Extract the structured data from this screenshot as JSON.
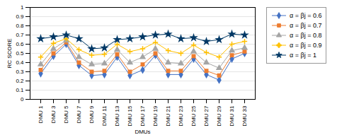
{
  "chart_data": {
    "type": "line",
    "xlabel": "DMUs",
    "ylabel": "RC SCORE",
    "categories": [
      "DMU 1",
      "DMU 3",
      "DMU 5",
      "DMU 7",
      "DMU 9",
      "DMU 11",
      "DMU 13",
      "DMU 15",
      "DMU 17",
      "DMU 19",
      "DMU 21",
      "DMU 23",
      "DMU 25",
      "DMU 27",
      "DMU 29",
      "DMU 31",
      "DMU 33"
    ],
    "series": [
      {
        "name": "α = βj = 0.6",
        "color": "#4472C4",
        "marker": "diamond",
        "values": [
          0.28,
          0.47,
          0.6,
          0.37,
          0.26,
          0.27,
          0.46,
          0.26,
          0.32,
          0.48,
          0.27,
          0.27,
          0.44,
          0.27,
          0.21,
          0.44,
          0.5
        ]
      },
      {
        "name": "α = βj = 0.7",
        "color": "#ED7D31",
        "marker": "square",
        "values": [
          0.32,
          0.5,
          0.62,
          0.4,
          0.3,
          0.31,
          0.49,
          0.3,
          0.38,
          0.5,
          0.31,
          0.31,
          0.47,
          0.31,
          0.26,
          0.48,
          0.52
        ]
      },
      {
        "name": "α = βj = 0.8",
        "color": "#A5A5A5",
        "marker": "triangle",
        "values": [
          0.38,
          0.55,
          0.64,
          0.46,
          0.38,
          0.39,
          0.54,
          0.4,
          0.46,
          0.55,
          0.4,
          0.39,
          0.52,
          0.4,
          0.34,
          0.53,
          0.56
        ]
      },
      {
        "name": "α = βj = 0.9",
        "color": "#FFC000",
        "marker": "plus",
        "values": [
          0.46,
          0.61,
          0.66,
          0.54,
          0.48,
          0.49,
          0.6,
          0.52,
          0.55,
          0.62,
          0.53,
          0.5,
          0.59,
          0.51,
          0.46,
          0.6,
          0.63
        ]
      },
      {
        "name": "α = βj = 1",
        "color": "#003865",
        "marker": "star",
        "values": [
          0.66,
          0.68,
          0.7,
          0.66,
          0.55,
          0.56,
          0.65,
          0.66,
          0.68,
          0.7,
          0.71,
          0.66,
          0.67,
          0.63,
          0.65,
          0.71,
          0.7
        ]
      }
    ],
    "ylim": [
      0,
      1.0
    ],
    "yticks": [
      0,
      0.1,
      0.2,
      0.3,
      0.4,
      0.5,
      0.6,
      0.7,
      0.8,
      0.9,
      1
    ],
    "grid": true,
    "legend": "right"
  }
}
